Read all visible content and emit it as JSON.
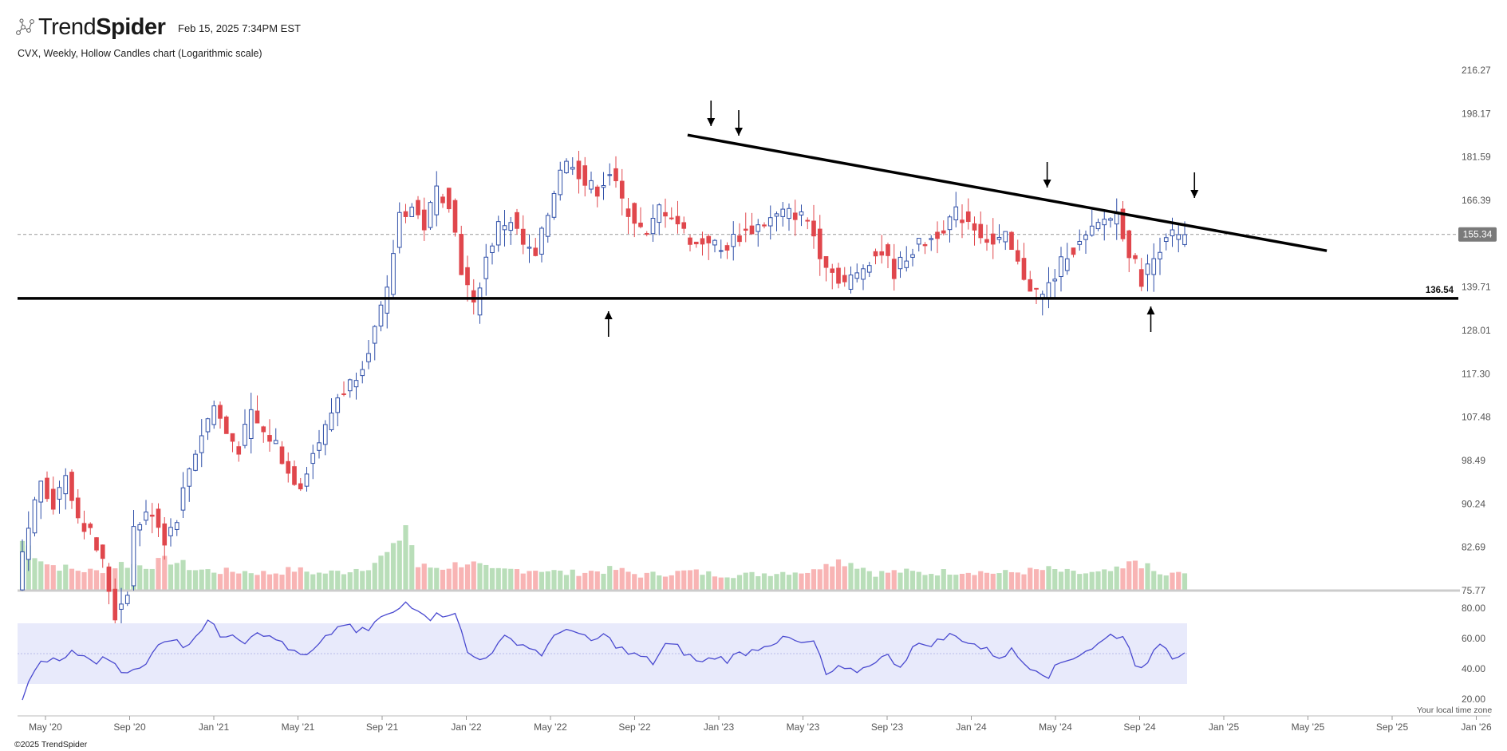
{
  "header": {
    "brand_light": "Trend",
    "brand_bold": "Spider",
    "timestamp": "Feb 15, 2025 7:34PM EST",
    "logo_icon": "trendspider-network-icon"
  },
  "footer": {
    "copyright": "©2025 TrendSpider",
    "timezone_label": "Your local time zone"
  },
  "chart_data": {
    "type": "candlestick",
    "title": "CVX, Weekly, Hollow Candles chart (Logarithmic scale)",
    "symbol": "CVX",
    "interval": "Weekly",
    "y_scale": "log",
    "price_ticks": [
      216.27,
      198.17,
      181.59,
      166.39,
      139.71,
      128.01,
      117.3,
      107.48,
      98.49,
      90.24,
      82.69,
      75.77
    ],
    "current_price": 155.34,
    "support_level": 136.54,
    "x_ticks": [
      "May '20",
      "Sep '20",
      "Jan '21",
      "May '21",
      "Sep '21",
      "Jan '22",
      "May '22",
      "Sep '22",
      "Jan '23",
      "May '23",
      "Sep '23",
      "Jan '24",
      "May '24",
      "Sep '24",
      "Jan '25",
      "May '25",
      "Sep '25",
      "Jan '26"
    ],
    "price_path": [
      [
        0,
        76
      ],
      [
        2,
        86
      ],
      [
        4,
        95
      ],
      [
        6,
        90
      ],
      [
        8,
        96
      ],
      [
        10,
        88
      ],
      [
        12,
        85
      ],
      [
        14,
        80
      ],
      [
        16,
        72
      ],
      [
        18,
        76
      ],
      [
        19,
        86
      ],
      [
        22,
        89
      ],
      [
        24,
        84
      ],
      [
        26,
        88
      ],
      [
        28,
        97
      ],
      [
        30,
        104
      ],
      [
        32,
        110
      ],
      [
        34,
        104
      ],
      [
        36,
        101
      ],
      [
        38,
        108
      ],
      [
        40,
        104
      ],
      [
        42,
        102
      ],
      [
        44,
        96
      ],
      [
        46,
        94
      ],
      [
        48,
        100
      ],
      [
        50,
        105
      ],
      [
        52,
        112
      ],
      [
        54,
        115
      ],
      [
        56,
        120
      ],
      [
        58,
        128
      ],
      [
        60,
        138
      ],
      [
        62,
        162
      ],
      [
        64,
        164
      ],
      [
        66,
        158
      ],
      [
        68,
        170
      ],
      [
        70,
        166
      ],
      [
        72,
        145
      ],
      [
        74,
        134
      ],
      [
        76,
        148
      ],
      [
        78,
        158
      ],
      [
        80,
        160
      ],
      [
        82,
        152
      ],
      [
        84,
        148
      ],
      [
        86,
        162
      ],
      [
        88,
        178
      ],
      [
        90,
        180
      ],
      [
        92,
        172
      ],
      [
        94,
        170
      ],
      [
        96,
        176
      ],
      [
        98,
        166
      ],
      [
        100,
        160
      ],
      [
        102,
        154
      ],
      [
        104,
        164
      ],
      [
        106,
        162
      ],
      [
        108,
        156
      ],
      [
        110,
        152
      ],
      [
        112,
        154
      ],
      [
        114,
        150
      ],
      [
        116,
        154
      ],
      [
        118,
        156
      ],
      [
        120,
        158
      ],
      [
        122,
        160
      ],
      [
        124,
        162
      ],
      [
        126,
        162
      ],
      [
        128,
        160
      ],
      [
        130,
        150
      ],
      [
        132,
        144
      ],
      [
        134,
        141
      ],
      [
        136,
        143
      ],
      [
        138,
        148
      ],
      [
        140,
        150
      ],
      [
        142,
        144
      ],
      [
        144,
        149
      ],
      [
        146,
        152
      ],
      [
        148,
        154
      ],
      [
        150,
        158
      ],
      [
        152,
        162
      ],
      [
        154,
        160
      ],
      [
        156,
        156
      ],
      [
        158,
        152
      ],
      [
        160,
        154
      ],
      [
        162,
        146
      ],
      [
        164,
        140
      ],
      [
        166,
        137
      ],
      [
        168,
        143
      ],
      [
        170,
        150
      ],
      [
        172,
        152
      ],
      [
        174,
        156
      ],
      [
        176,
        160
      ],
      [
        178,
        162
      ],
      [
        180,
        150
      ],
      [
        182,
        142
      ],
      [
        184,
        148
      ],
      [
        186,
        156
      ],
      [
        188,
        154
      ]
    ],
    "volume_path": [
      [
        0,
        0.52
      ],
      [
        4,
        0.28
      ],
      [
        8,
        0.22
      ],
      [
        12,
        0.2
      ],
      [
        16,
        0.28
      ],
      [
        20,
        0.26
      ],
      [
        24,
        0.32
      ],
      [
        28,
        0.22
      ],
      [
        32,
        0.2
      ],
      [
        36,
        0.2
      ],
      [
        40,
        0.18
      ],
      [
        44,
        0.22
      ],
      [
        48,
        0.18
      ],
      [
        52,
        0.2
      ],
      [
        56,
        0.26
      ],
      [
        60,
        0.42
      ],
      [
        62,
        0.7
      ],
      [
        64,
        0.25
      ],
      [
        68,
        0.24
      ],
      [
        72,
        0.3
      ],
      [
        76,
        0.2
      ],
      [
        80,
        0.22
      ],
      [
        84,
        0.22
      ],
      [
        88,
        0.18
      ],
      [
        92,
        0.2
      ],
      [
        96,
        0.22
      ],
      [
        100,
        0.16
      ],
      [
        104,
        0.18
      ],
      [
        108,
        0.2
      ],
      [
        112,
        0.17
      ],
      [
        116,
        0.16
      ],
      [
        120,
        0.18
      ],
      [
        124,
        0.2
      ],
      [
        128,
        0.2
      ],
      [
        130,
        0.32
      ],
      [
        134,
        0.3
      ],
      [
        138,
        0.18
      ],
      [
        142,
        0.2
      ],
      [
        146,
        0.18
      ],
      [
        150,
        0.2
      ],
      [
        154,
        0.2
      ],
      [
        158,
        0.18
      ],
      [
        162,
        0.2
      ],
      [
        166,
        0.22
      ],
      [
        170,
        0.18
      ],
      [
        174,
        0.18
      ],
      [
        178,
        0.22
      ],
      [
        180,
        0.32
      ],
      [
        184,
        0.16
      ],
      [
        188,
        0.18
      ]
    ],
    "rsi": {
      "ticks": [
        80.0,
        60.0,
        40.0,
        20.0
      ],
      "band": [
        70,
        30
      ],
      "path": [
        [
          0,
          20
        ],
        [
          2,
          40
        ],
        [
          4,
          46
        ],
        [
          6,
          44
        ],
        [
          8,
          52
        ],
        [
          10,
          47
        ],
        [
          12,
          45
        ],
        [
          14,
          47
        ],
        [
          16,
          40
        ],
        [
          18,
          38
        ],
        [
          20,
          42
        ],
        [
          22,
          58
        ],
        [
          24,
          60
        ],
        [
          26,
          55
        ],
        [
          28,
          62
        ],
        [
          30,
          72
        ],
        [
          32,
          62
        ],
        [
          34,
          64
        ],
        [
          36,
          58
        ],
        [
          38,
          66
        ],
        [
          40,
          60
        ],
        [
          42,
          58
        ],
        [
          44,
          50
        ],
        [
          46,
          48
        ],
        [
          48,
          55
        ],
        [
          50,
          64
        ],
        [
          52,
          70
        ],
        [
          54,
          64
        ],
        [
          56,
          66
        ],
        [
          58,
          74
        ],
        [
          60,
          76
        ],
        [
          62,
          84
        ],
        [
          64,
          80
        ],
        [
          66,
          74
        ],
        [
          68,
          76
        ],
        [
          70,
          78
        ],
        [
          72,
          50
        ],
        [
          74,
          46
        ],
        [
          76,
          52
        ],
        [
          78,
          60
        ],
        [
          80,
          58
        ],
        [
          82,
          54
        ],
        [
          84,
          50
        ],
        [
          86,
          60
        ],
        [
          88,
          68
        ],
        [
          90,
          62
        ],
        [
          92,
          58
        ],
        [
          94,
          62
        ],
        [
          96,
          56
        ],
        [
          98,
          50
        ],
        [
          100,
          48
        ],
        [
          102,
          44
        ],
        [
          104,
          56
        ],
        [
          106,
          54
        ],
        [
          108,
          48
        ],
        [
          110,
          44
        ],
        [
          112,
          48
        ],
        [
          114,
          46
        ],
        [
          116,
          50
        ],
        [
          118,
          52
        ],
        [
          120,
          56
        ],
        [
          122,
          58
        ],
        [
          124,
          60
        ],
        [
          126,
          56
        ],
        [
          128,
          58
        ],
        [
          130,
          36
        ],
        [
          132,
          40
        ],
        [
          134,
          38
        ],
        [
          136,
          40
        ],
        [
          138,
          46
        ],
        [
          140,
          48
        ],
        [
          142,
          42
        ],
        [
          144,
          54
        ],
        [
          146,
          56
        ],
        [
          148,
          58
        ],
        [
          150,
          62
        ],
        [
          152,
          60
        ],
        [
          154,
          56
        ],
        [
          156,
          52
        ],
        [
          158,
          48
        ],
        [
          160,
          52
        ],
        [
          162,
          44
        ],
        [
          164,
          40
        ],
        [
          166,
          36
        ],
        [
          168,
          44
        ],
        [
          170,
          48
        ],
        [
          172,
          52
        ],
        [
          174,
          56
        ],
        [
          176,
          62
        ],
        [
          178,
          62
        ],
        [
          180,
          44
        ],
        [
          182,
          42
        ],
        [
          184,
          58
        ],
        [
          186,
          48
        ],
        [
          188,
          52
        ]
      ]
    },
    "trendline": {
      "start": {
        "x_label": "Oct '22",
        "price": 189.8
      },
      "end": {
        "x_label": "Apr '25",
        "price": 150.3
      }
    },
    "markers": {
      "down_arrows": [
        "Nov '22",
        "Jan '23",
        "Apr '24",
        "Nov '24"
      ],
      "up_arrows": [
        "Jul '22",
        "Sep '24"
      ]
    },
    "grid": false,
    "colors": {
      "up_candle": "#2f4fa8",
      "down_candle": "#e0474c",
      "volume_up": "#b9deb9",
      "volume_down": "#f8b4b4",
      "rsi_line": "#4a4ad0",
      "rsi_band": "#e8eafb",
      "price_badge": "#7a7a7a"
    }
  }
}
